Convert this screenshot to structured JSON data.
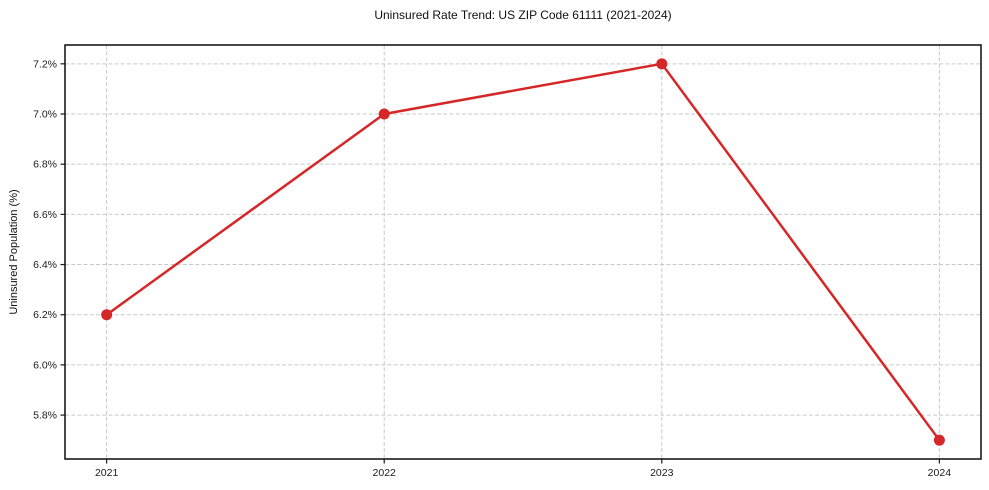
{
  "chart_data": {
    "type": "line",
    "title": "Uninsured Rate Trend: US ZIP Code 61111 (2021-2024)",
    "xlabel": "",
    "ylabel": "Uninsured Population (%)",
    "x": [
      2021,
      2022,
      2023,
      2024
    ],
    "values": [
      6.2,
      7.0,
      7.2,
      5.7
    ],
    "x_tick_labels": [
      "2021",
      "2022",
      "2023",
      "2024"
    ],
    "y_ticks": [
      5.8,
      6.0,
      6.2,
      6.4,
      6.6,
      6.8,
      7.0,
      7.2
    ],
    "y_tick_labels": [
      "5.8%",
      "6.0%",
      "6.2%",
      "6.4%",
      "6.6%",
      "6.8%",
      "7.0%",
      "7.2%"
    ],
    "xlim": [
      2020.85,
      2024.15
    ],
    "ylim": [
      5.625,
      7.275
    ],
    "grid": true,
    "legend": "none",
    "colors": {
      "line": "#d62728",
      "marker": "#d62728",
      "grid": "#c9c9c9",
      "spine": "#1a1a1a",
      "tick_text": "#1a1a1a",
      "background": "#ffffff"
    }
  }
}
